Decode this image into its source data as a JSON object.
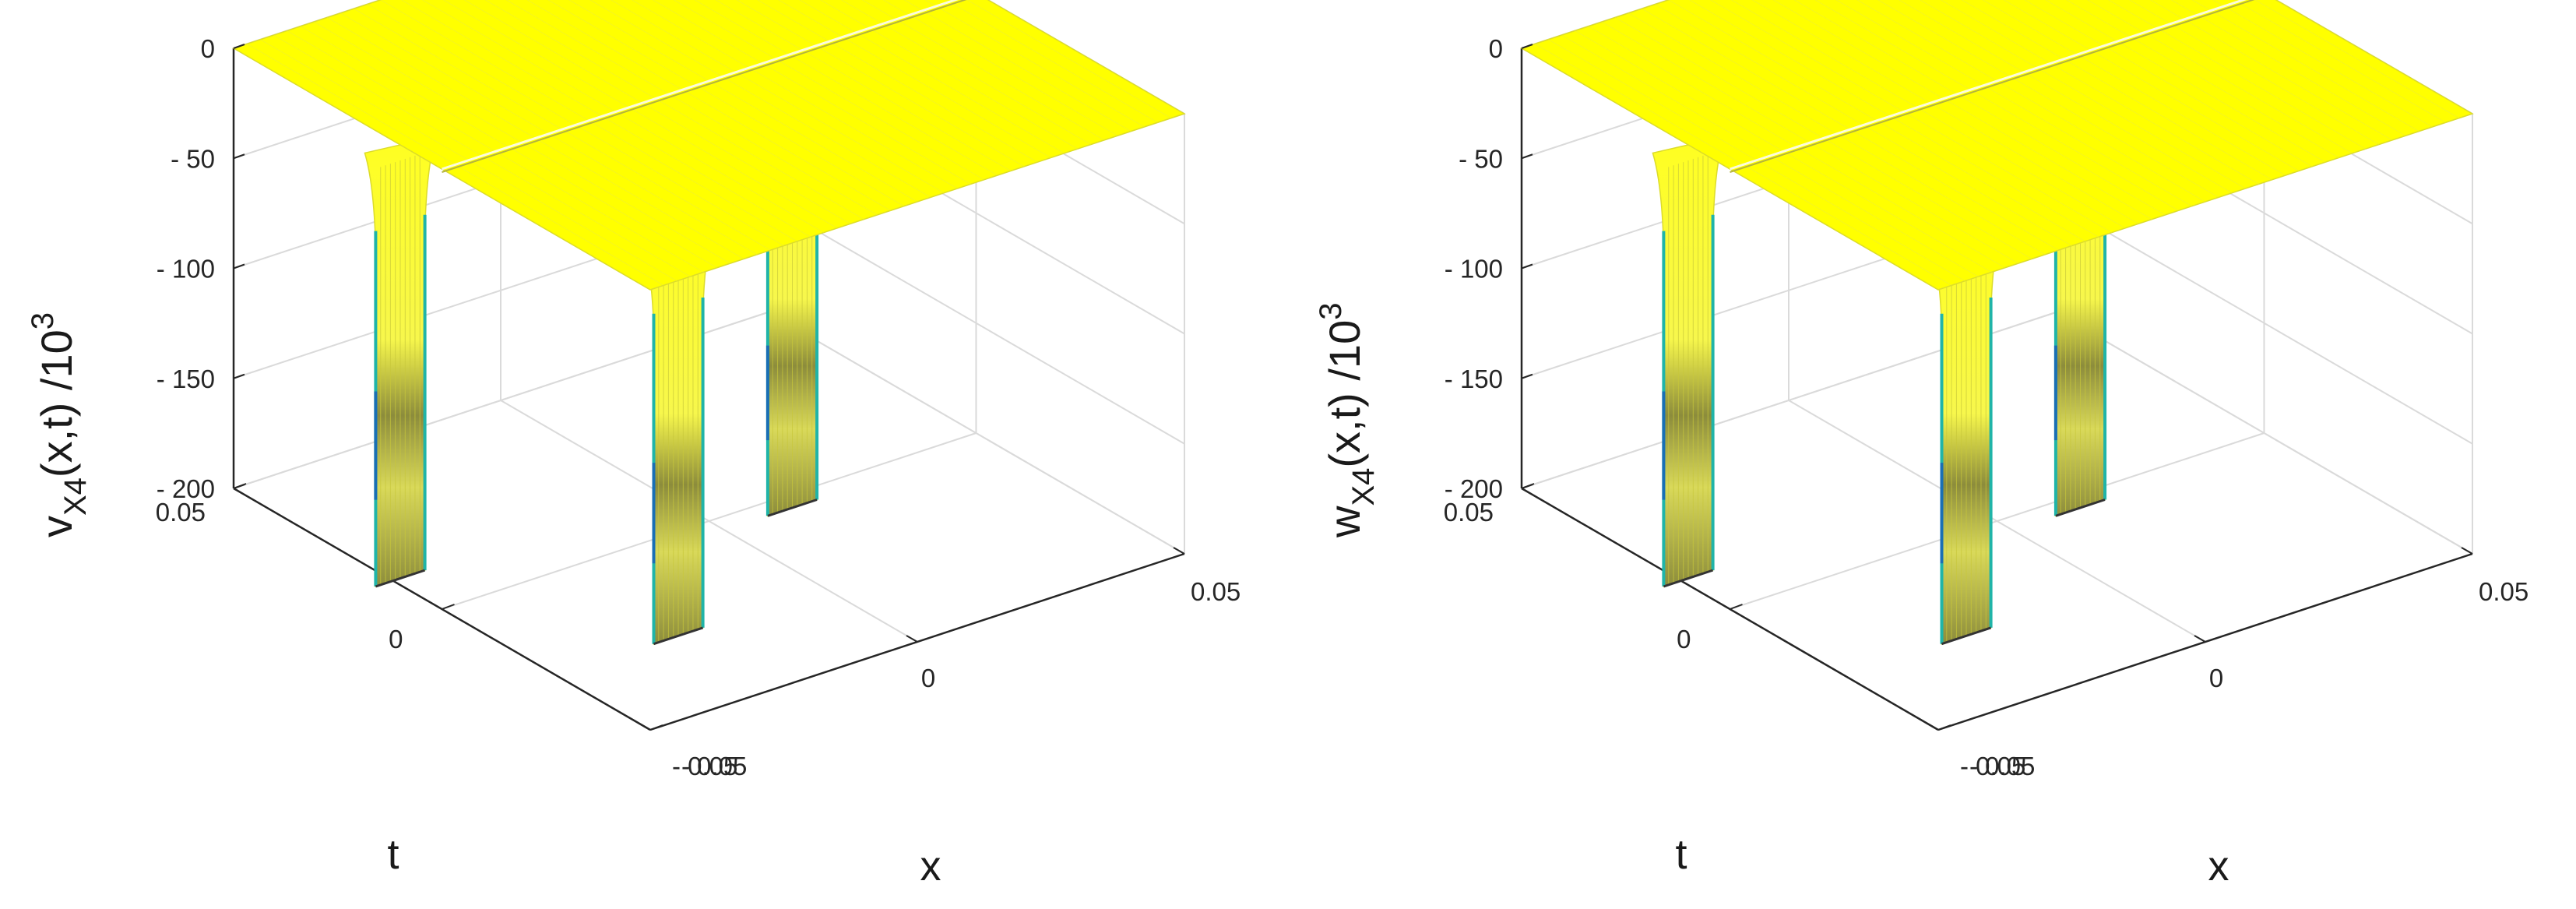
{
  "chart_data": [
    {
      "type": "surface",
      "title": "",
      "xlabel": "x",
      "ylabel": "t",
      "zlabel_main": "v",
      "zlabel_sub": "X4",
      "zlabel_rest": "(x,t) /10",
      "zlabel_exp": "3",
      "xlim": [
        -0.05,
        0.05
      ],
      "ylim": [
        -0.05,
        0.05
      ],
      "zlim": [
        -200,
        0
      ],
      "x_ticks": [
        "- 0.05",
        "0",
        "0.05"
      ],
      "y_ticks": [
        "- 0.05",
        "0",
        "0.05"
      ],
      "z_ticks": [
        "0",
        "- 50",
        "- 100",
        "- 150",
        "- 200"
      ],
      "z_tick_values": [
        0,
        -50,
        -100,
        -150,
        -200
      ],
      "grid": true,
      "surface_level": 0,
      "colors": {
        "surface": "#ffff00",
        "edge": "#dcdc2a",
        "wall": "#f2f25a",
        "shadow": "#8c8c3c",
        "mid": "#20b4a8",
        "deep": "#1a6fb4",
        "axis": "#262626",
        "grid": "#dadada"
      },
      "ridge": {
        "orientation": "along-x",
        "t": 0.0
      },
      "wells": [
        {
          "x": -0.05,
          "t": 0.01,
          "depth": -197
        },
        {
          "x": -0.035,
          "t": -0.0375,
          "depth": -183
        },
        {
          "x": 0.0,
          "t": -0.02,
          "depth": -172
        }
      ]
    },
    {
      "type": "surface",
      "title": "",
      "xlabel": "x",
      "ylabel": "t",
      "zlabel_main": "w",
      "zlabel_sub": "X4",
      "zlabel_rest": "(x,t) /10",
      "zlabel_exp": "3",
      "xlim": [
        -0.05,
        0.05
      ],
      "ylim": [
        -0.05,
        0.05
      ],
      "zlim": [
        -200,
        0
      ],
      "x_ticks": [
        "- 0.05",
        "0",
        "0.05"
      ],
      "y_ticks": [
        "- 0.05",
        "0",
        "0.05"
      ],
      "z_ticks": [
        "0",
        "- 50",
        "- 100",
        "- 150",
        "- 200"
      ],
      "z_tick_values": [
        0,
        -50,
        -100,
        -150,
        -200
      ],
      "grid": true,
      "surface_level": 0,
      "colors": {
        "surface": "#ffff00",
        "edge": "#dcdc2a",
        "wall": "#f2f25a",
        "shadow": "#8c8c3c",
        "mid": "#20b4a8",
        "deep": "#1a6fb4",
        "axis": "#262626",
        "grid": "#dadada"
      },
      "ridge": {
        "orientation": "along-x",
        "t": 0.0
      },
      "wells": [
        {
          "x": -0.05,
          "t": 0.01,
          "depth": -197
        },
        {
          "x": -0.035,
          "t": -0.0375,
          "depth": -183
        },
        {
          "x": 0.0,
          "t": -0.02,
          "depth": -172
        }
      ]
    }
  ]
}
